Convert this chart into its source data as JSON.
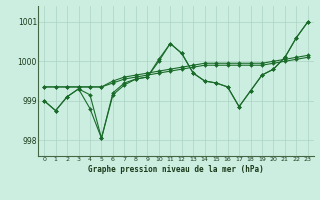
{
  "background_color": "#cceee0",
  "plot_bg_color": "#cceee0",
  "grid_color": "#aad4c4",
  "line_color": "#1a6b2a",
  "title": "Graphe pression niveau de la mer (hPa)",
  "xlim": [
    -0.5,
    23.5
  ],
  "ylim": [
    997.6,
    1001.4
  ],
  "yticks": [
    998,
    999,
    1000,
    1001
  ],
  "xticks": [
    0,
    1,
    2,
    3,
    4,
    5,
    6,
    7,
    8,
    9,
    10,
    11,
    12,
    13,
    14,
    15,
    16,
    17,
    18,
    19,
    20,
    21,
    22,
    23
  ],
  "series": [
    [
      999.0,
      998.75,
      999.1,
      999.3,
      999.15,
      998.05,
      999.2,
      999.45,
      999.55,
      999.6,
      1000.05,
      1000.45,
      1000.2,
      999.7,
      999.5,
      999.45,
      999.35,
      998.85,
      999.25,
      999.65,
      999.8,
      1000.1,
      1000.6,
      1001.0
    ],
    [
      999.35,
      999.35,
      999.35,
      999.35,
      999.35,
      999.35,
      999.45,
      999.55,
      999.6,
      999.65,
      999.7,
      999.75,
      999.8,
      999.85,
      999.9,
      999.9,
      999.9,
      999.9,
      999.9,
      999.9,
      999.95,
      1000.0,
      1000.05,
      1000.1
    ],
    [
      999.0,
      998.75,
      999.1,
      999.3,
      998.8,
      998.05,
      999.15,
      999.4,
      999.55,
      999.6,
      1000.0,
      1000.45,
      1000.2,
      999.7,
      999.5,
      999.45,
      999.35,
      998.85,
      999.25,
      999.65,
      999.8,
      1000.1,
      1000.6,
      1001.0
    ],
    [
      999.35,
      999.35,
      999.35,
      999.35,
      999.35,
      999.35,
      999.5,
      999.6,
      999.65,
      999.7,
      999.75,
      999.8,
      999.85,
      999.9,
      999.95,
      999.95,
      999.95,
      999.95,
      999.95,
      999.95,
      1000.0,
      1000.05,
      1000.1,
      1000.15
    ]
  ],
  "trend_lines": [
    [
      [
        1,
        999.35
      ],
      [
        23,
        1000.15
      ]
    ],
    [
      [
        1,
        999.35
      ],
      [
        16,
        999.95
      ]
    ],
    [
      [
        1,
        999.35
      ],
      [
        14,
        999.9
      ]
    ]
  ]
}
